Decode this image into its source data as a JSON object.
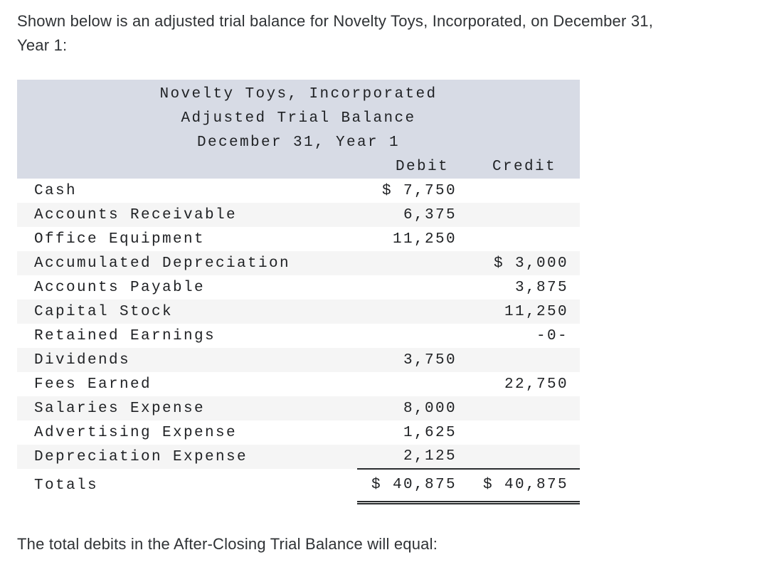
{
  "question": {
    "intro_lines": [
      "Shown below is an adjusted trial balance for Novelty Toys, Incorporated, on December 31,",
      "Year 1:"
    ],
    "prompt": "The total debits in the After-Closing Trial Balance will equal:"
  },
  "table": {
    "title_lines": [
      "Novelty Toys, Incorporated",
      "Adjusted Trial Balance",
      "December 31, Year 1"
    ],
    "columns": {
      "debit": "Debit",
      "credit": "Credit"
    },
    "rows": [
      {
        "account": "Cash",
        "debit": "$ 7,750",
        "credit": ""
      },
      {
        "account": "Accounts Receivable",
        "debit": "6,375",
        "credit": ""
      },
      {
        "account": "Office Equipment",
        "debit": "11,250",
        "credit": ""
      },
      {
        "account": "Accumulated Depreciation",
        "debit": "",
        "credit": "$ 3,000"
      },
      {
        "account": "Accounts Payable",
        "debit": "",
        "credit": "3,875"
      },
      {
        "account": "Capital Stock",
        "debit": "",
        "credit": "11,250"
      },
      {
        "account": "Retained Earnings",
        "debit": "",
        "credit": "-0-"
      },
      {
        "account": "Dividends",
        "debit": "3,750",
        "credit": ""
      },
      {
        "account": "Fees Earned",
        "debit": "",
        "credit": "22,750"
      },
      {
        "account": "Salaries Expense",
        "debit": "8,000",
        "credit": ""
      },
      {
        "account": "Advertising Expense",
        "debit": "1,625",
        "credit": ""
      },
      {
        "account": "Depreciation Expense",
        "debit": "2,125",
        "credit": ""
      }
    ],
    "totals": {
      "label": "Totals",
      "debit": "$ 40,875",
      "credit": "$ 40,875"
    },
    "colors": {
      "header_background": "#d7dbe5",
      "stripe_background": "#f5f5f5",
      "table_text": "#1f2124",
      "body_text": "#2f3235"
    }
  }
}
